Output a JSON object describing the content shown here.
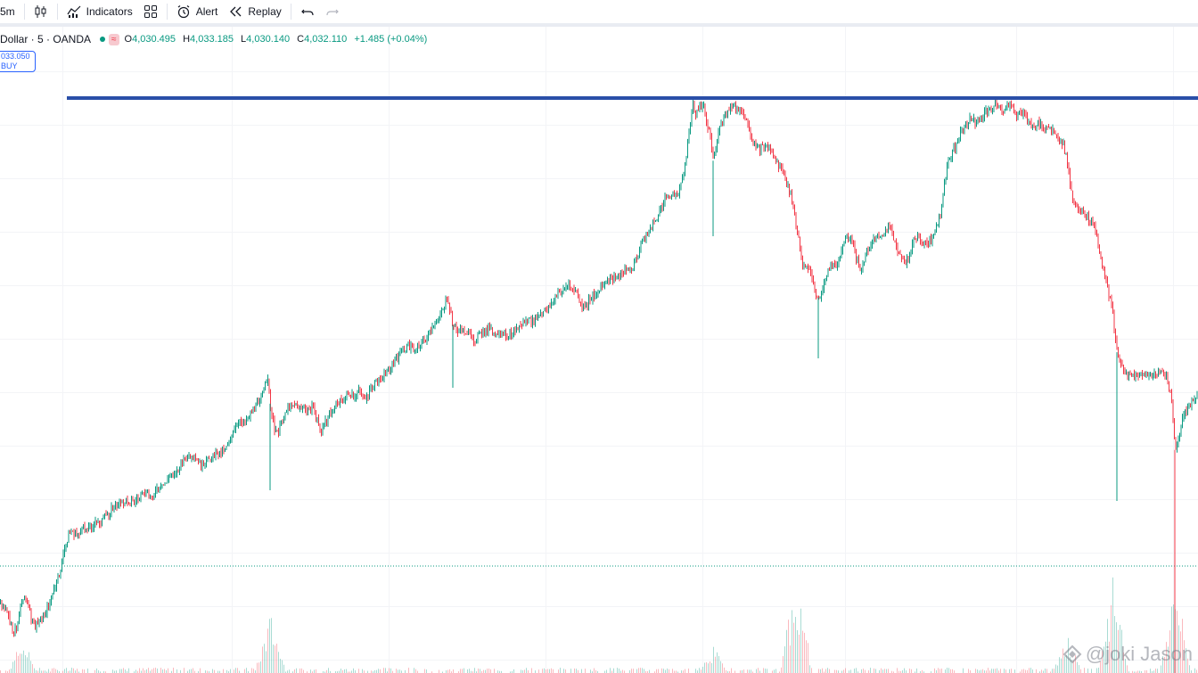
{
  "toolbar": {
    "interval_label": "5m",
    "indicators_label": "Indicators",
    "alert_label": "Alert",
    "replay_label": "Replay"
  },
  "legend": {
    "symbol": "Dollar · 5 · OANDA",
    "open_key": "O",
    "open": "4,030.495",
    "high_key": "H",
    "high": "4,033.185",
    "low_key": "L",
    "low": "4,030.140",
    "close_key": "C",
    "close": "4,032.110",
    "change": "+1.485 (+0.04%)"
  },
  "buy_box": {
    "price": "033.050",
    "label": "BUY"
  },
  "watermark": {
    "text": "@joki Jason"
  },
  "colors": {
    "up": "#089981",
    "down": "#f23645",
    "horizontal_line": "#2a4fa8",
    "accent": "#2962ff"
  },
  "chart_data": {
    "type": "candlestick",
    "has_volume": true,
    "grid": true,
    "horizontal_line": "resistance at top of range",
    "price_path": [
      [
        0,
        72
      ],
      [
        5,
        74
      ],
      [
        10,
        78
      ],
      [
        14,
        83
      ],
      [
        18,
        81
      ],
      [
        22,
        74
      ],
      [
        26,
        68
      ],
      [
        30,
        72
      ],
      [
        34,
        77
      ],
      [
        38,
        81
      ],
      [
        43,
        79
      ],
      [
        48,
        77
      ],
      [
        52,
        74
      ],
      [
        56,
        71
      ],
      [
        60,
        67
      ],
      [
        64,
        63
      ],
      [
        68,
        58
      ],
      [
        72,
        51
      ],
      [
        76,
        46
      ],
      [
        80,
        44
      ],
      [
        85,
        46
      ],
      [
        90,
        44
      ],
      [
        96,
        43
      ],
      [
        102,
        42
      ],
      [
        108,
        41
      ],
      [
        114,
        40
      ],
      [
        120,
        38
      ],
      [
        126,
        35
      ],
      [
        132,
        34
      ],
      [
        138,
        33
      ],
      [
        144,
        32
      ],
      [
        150,
        33
      ],
      [
        156,
        31
      ],
      [
        162,
        30
      ],
      [
        168,
        31
      ],
      [
        174,
        29
      ],
      [
        180,
        28
      ],
      [
        186,
        25
      ],
      [
        192,
        22
      ],
      [
        198,
        21
      ],
      [
        204,
        18
      ],
      [
        210,
        15
      ],
      [
        216,
        17
      ],
      [
        222,
        18
      ],
      [
        228,
        20
      ],
      [
        234,
        16
      ],
      [
        240,
        15
      ],
      [
        246,
        14
      ],
      [
        252,
        12
      ],
      [
        258,
        8
      ],
      [
        264,
        5
      ],
      [
        270,
        2
      ],
      [
        276,
        1
      ],
      [
        282,
        -2
      ],
      [
        288,
        -4
      ],
      [
        294,
        -10
      ],
      [
        300,
        -13
      ],
      [
        304,
        -2
      ],
      [
        308,
        7
      ],
      [
        312,
        6
      ],
      [
        316,
        2
      ],
      [
        320,
        -2
      ],
      [
        326,
        -5
      ],
      [
        332,
        -4
      ],
      [
        338,
        -3
      ],
      [
        344,
        -2
      ],
      [
        350,
        -3
      ],
      [
        355,
        1
      ],
      [
        360,
        6
      ],
      [
        364,
        3
      ],
      [
        368,
        0
      ],
      [
        374,
        -3
      ],
      [
        380,
        -5
      ],
      [
        386,
        -7
      ],
      [
        392,
        -9
      ],
      [
        398,
        -7
      ],
      [
        404,
        -10
      ],
      [
        410,
        -6
      ],
      [
        416,
        -10
      ],
      [
        422,
        -13
      ],
      [
        428,
        -15
      ],
      [
        434,
        -17
      ],
      [
        440,
        -20
      ],
      [
        446,
        -23
      ],
      [
        452,
        -25
      ],
      [
        458,
        -27
      ],
      [
        464,
        -25
      ],
      [
        470,
        -28
      ],
      [
        476,
        -29
      ],
      [
        482,
        -32
      ],
      [
        488,
        -35
      ],
      [
        494,
        -40
      ],
      [
        500,
        -44
      ],
      [
        504,
        -41
      ],
      [
        508,
        -35
      ],
      [
        512,
        -33
      ],
      [
        518,
        -33
      ],
      [
        524,
        -32
      ],
      [
        530,
        -29
      ],
      [
        536,
        -31
      ],
      [
        542,
        -32
      ],
      [
        548,
        -34
      ],
      [
        554,
        -31
      ],
      [
        560,
        -30
      ],
      [
        566,
        -31
      ],
      [
        572,
        -31
      ],
      [
        578,
        -33
      ],
      [
        584,
        -35
      ],
      [
        590,
        -37
      ],
      [
        596,
        -36
      ],
      [
        602,
        -38
      ],
      [
        608,
        -39
      ],
      [
        614,
        -42
      ],
      [
        620,
        -44
      ],
      [
        626,
        -47
      ],
      [
        632,
        -49
      ],
      [
        638,
        -50
      ],
      [
        644,
        -48
      ],
      [
        648,
        -46
      ],
      [
        652,
        -42
      ],
      [
        656,
        -41
      ],
      [
        660,
        -44
      ],
      [
        666,
        -47
      ],
      [
        672,
        -48
      ],
      [
        678,
        -51
      ],
      [
        684,
        -52
      ],
      [
        690,
        -53
      ],
      [
        696,
        -55
      ],
      [
        702,
        -57
      ],
      [
        708,
        -55
      ],
      [
        712,
        -59
      ],
      [
        716,
        -63
      ],
      [
        720,
        -67
      ],
      [
        726,
        -70
      ],
      [
        732,
        -74
      ],
      [
        738,
        -77
      ],
      [
        744,
        -82
      ],
      [
        750,
        -85
      ],
      [
        756,
        -84
      ],
      [
        762,
        -87
      ],
      [
        766,
        -91
      ],
      [
        770,
        -102
      ],
      [
        774,
        -112
      ],
      [
        777,
        -120
      ],
      [
        780,
        -115
      ],
      [
        784,
        -118
      ],
      [
        788,
        -120
      ],
      [
        792,
        -114
      ],
      [
        796,
        -108
      ],
      [
        800,
        -98
      ],
      [
        803,
        -104
      ],
      [
        807,
        -110
      ],
      [
        811,
        -114
      ],
      [
        816,
        -117
      ],
      [
        820,
        -119
      ],
      [
        824,
        -118
      ],
      [
        828,
        -116
      ],
      [
        832,
        -117
      ],
      [
        836,
        -114
      ],
      [
        840,
        -111
      ],
      [
        844,
        -105
      ],
      [
        848,
        -104
      ],
      [
        852,
        -102
      ],
      [
        856,
        -104
      ],
      [
        860,
        -103
      ],
      [
        864,
        -101
      ],
      [
        868,
        -99
      ],
      [
        872,
        -97
      ],
      [
        876,
        -94
      ],
      [
        880,
        -91
      ],
      [
        884,
        -87
      ],
      [
        888,
        -83
      ],
      [
        892,
        -74
      ],
      [
        896,
        -66
      ],
      [
        900,
        -58
      ],
      [
        904,
        -59
      ],
      [
        908,
        -56
      ],
      [
        912,
        -50
      ],
      [
        916,
        -44
      ],
      [
        920,
        -47
      ],
      [
        924,
        -52
      ],
      [
        928,
        -56
      ],
      [
        932,
        -59
      ],
      [
        936,
        -57
      ],
      [
        940,
        -61
      ],
      [
        944,
        -64
      ],
      [
        948,
        -67
      ],
      [
        952,
        -69
      ],
      [
        956,
        -66
      ],
      [
        960,
        -61
      ],
      [
        964,
        -56
      ],
      [
        968,
        -59
      ],
      [
        972,
        -63
      ],
      [
        976,
        -66
      ],
      [
        980,
        -68
      ],
      [
        984,
        -70
      ],
      [
        988,
        -68
      ],
      [
        992,
        -70
      ],
      [
        996,
        -72
      ],
      [
        1000,
        -71
      ],
      [
        1004,
        -66
      ],
      [
        1008,
        -63
      ],
      [
        1012,
        -59
      ],
      [
        1016,
        -58
      ],
      [
        1020,
        -63
      ],
      [
        1024,
        -67
      ],
      [
        1028,
        -68
      ],
      [
        1032,
        -68
      ],
      [
        1036,
        -66
      ],
      [
        1040,
        -67
      ],
      [
        1044,
        -68
      ],
      [
        1048,
        -70
      ],
      [
        1052,
        -74
      ],
      [
        1056,
        -81
      ],
      [
        1060,
        -92
      ],
      [
        1064,
        -98
      ],
      [
        1068,
        -101
      ],
      [
        1072,
        -104
      ],
      [
        1076,
        -108
      ],
      [
        1080,
        -110
      ],
      [
        1084,
        -113
      ],
      [
        1088,
        -114
      ],
      [
        1092,
        -113
      ],
      [
        1096,
        -113
      ],
      [
        1100,
        -114
      ],
      [
        1104,
        -116
      ],
      [
        1108,
        -117
      ],
      [
        1112,
        -118
      ],
      [
        1116,
        -121
      ],
      [
        1120,
        -119
      ],
      [
        1124,
        -117
      ],
      [
        1128,
        -118
      ],
      [
        1132,
        -119
      ],
      [
        1136,
        -118
      ],
      [
        1140,
        -116
      ],
      [
        1144,
        -117
      ],
      [
        1148,
        -116
      ],
      [
        1152,
        -113
      ],
      [
        1156,
        -111
      ],
      [
        1160,
        -111
      ],
      [
        1164,
        -112
      ],
      [
        1168,
        -112
      ],
      [
        1172,
        -110
      ],
      [
        1176,
        -110
      ],
      [
        1180,
        -109
      ],
      [
        1184,
        -107
      ],
      [
        1188,
        -105
      ],
      [
        1192,
        -105
      ],
      [
        1196,
        -99
      ],
      [
        1200,
        -89
      ],
      [
        1204,
        -81
      ],
      [
        1208,
        -79
      ],
      [
        1212,
        -78
      ],
      [
        1216,
        -79
      ],
      [
        1220,
        -76
      ],
      [
        1224,
        -75
      ],
      [
        1228,
        -72
      ],
      [
        1232,
        -65
      ],
      [
        1236,
        -58
      ],
      [
        1240,
        -52
      ],
      [
        1244,
        -46
      ],
      [
        1248,
        -38
      ],
      [
        1252,
        -26
      ],
      [
        1256,
        -20
      ],
      [
        1260,
        -18
      ],
      [
        1264,
        -16
      ],
      [
        1268,
        -16
      ],
      [
        1272,
        -15
      ],
      [
        1276,
        -16
      ],
      [
        1280,
        -16
      ],
      [
        1284,
        -15
      ],
      [
        1288,
        -16
      ],
      [
        1292,
        -15
      ],
      [
        1296,
        -16
      ],
      [
        1300,
        -17
      ],
      [
        1304,
        -16
      ],
      [
        1308,
        -15
      ],
      [
        1312,
        -10
      ],
      [
        1316,
        2
      ],
      [
        1318,
        13
      ],
      [
        1322,
        9
      ],
      [
        1326,
        1
      ],
      [
        1330,
        -2
      ],
      [
        1334,
        -4
      ],
      [
        1338,
        -6
      ],
      [
        1344,
        -8
      ]
    ]
  }
}
